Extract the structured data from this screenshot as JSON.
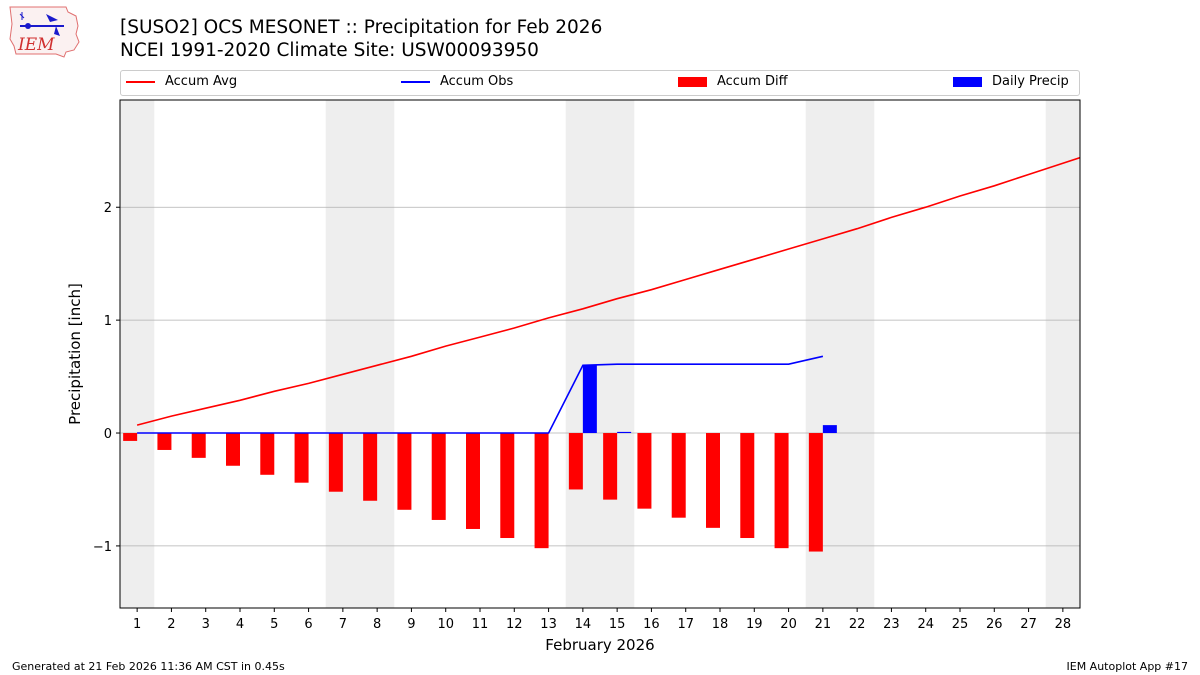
{
  "logo": {
    "text": "IEM"
  },
  "title_line1": "[SUSO2] OCS MESONET :: Precipitation for Feb 2026",
  "title_line2": "NCEI 1991-2020 Climate Site: USW00093950",
  "legend": {
    "accum_avg": "Accum Avg",
    "accum_obs": "Accum Obs",
    "accum_diff": "Accum Diff",
    "daily_precip": "Daily Precip"
  },
  "colors": {
    "avg": "#ff0000",
    "obs": "#0000ff",
    "diff": "#ff0000",
    "daily": "#0000ff",
    "weekend": "#eeeeee",
    "grid": "#b0b0b0"
  },
  "footer": {
    "left": "Generated at 21 Feb 2026 11:36 AM CST in 0.45s",
    "right": "IEM Autoplot App #17"
  },
  "chart_data": {
    "type": "bar",
    "title": "[SUSO2] OCS MESONET :: Precipitation for Feb 2026",
    "xlabel": "February 2026",
    "ylabel": "Precipitation [inch]",
    "ylim": [
      -1.55,
      2.95
    ],
    "xlim": [
      0.5,
      28.5
    ],
    "yticks": [
      -1,
      0,
      1,
      2
    ],
    "ytick_labels": [
      "−1",
      "0",
      "1",
      "2"
    ],
    "days": [
      1,
      2,
      3,
      4,
      5,
      6,
      7,
      8,
      9,
      10,
      11,
      12,
      13,
      14,
      15,
      16,
      17,
      18,
      19,
      20,
      21,
      22,
      23,
      24,
      25,
      26,
      27,
      28
    ],
    "weekend_spans": [
      [
        0.5,
        1.5
      ],
      [
        6.5,
        8.5
      ],
      [
        13.5,
        15.5
      ],
      [
        20.5,
        22.5
      ],
      [
        27.5,
        28.5
      ]
    ],
    "series": [
      {
        "name": "Accum Avg",
        "kind": "line",
        "x": [
          1,
          2,
          3,
          4,
          5,
          6,
          7,
          8,
          9,
          10,
          11,
          12,
          13,
          14,
          15,
          16,
          17,
          18,
          19,
          20,
          21,
          22,
          23,
          24,
          25,
          26,
          27,
          28,
          28.5
        ],
        "values": [
          0.07,
          0.15,
          0.22,
          0.29,
          0.37,
          0.44,
          0.52,
          0.6,
          0.68,
          0.77,
          0.85,
          0.93,
          1.02,
          1.1,
          1.19,
          1.27,
          1.36,
          1.45,
          1.54,
          1.63,
          1.72,
          1.81,
          1.91,
          2.0,
          2.1,
          2.19,
          2.29,
          2.39,
          2.44
        ]
      },
      {
        "name": "Accum Obs",
        "kind": "line",
        "x": [
          1,
          2,
          3,
          4,
          5,
          6,
          7,
          8,
          9,
          10,
          11,
          12,
          13,
          14,
          15,
          16,
          17,
          18,
          19,
          20,
          21
        ],
        "values": [
          0,
          0,
          0,
          0,
          0,
          0,
          0,
          0,
          0,
          0,
          0,
          0,
          0,
          0.6,
          0.61,
          0.61,
          0.61,
          0.61,
          0.61,
          0.61,
          0.68
        ]
      },
      {
        "name": "Accum Diff",
        "kind": "bar",
        "x": [
          1,
          2,
          3,
          4,
          5,
          6,
          7,
          8,
          9,
          10,
          11,
          12,
          13,
          14,
          15,
          16,
          17,
          18,
          19,
          20,
          21
        ],
        "values": [
          -0.07,
          -0.15,
          -0.22,
          -0.29,
          -0.37,
          -0.44,
          -0.52,
          -0.6,
          -0.68,
          -0.77,
          -0.85,
          -0.93,
          -1.02,
          -0.5,
          -0.59,
          -0.67,
          -0.75,
          -0.84,
          -0.93,
          -1.02,
          -1.05
        ]
      },
      {
        "name": "Daily Precip",
        "kind": "bar",
        "x": [
          14,
          15,
          21
        ],
        "values": [
          0.6,
          0.01,
          0.07
        ]
      }
    ]
  }
}
